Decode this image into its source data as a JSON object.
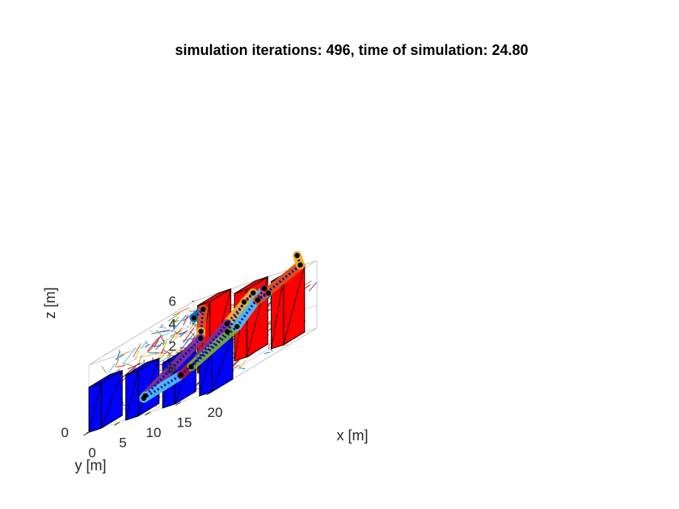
{
  "chart_data": {
    "type": "3d-scene",
    "title": "simulation iterations: 496, time of simulation: 24.80",
    "xlabel": "x [m]",
    "ylabel": "y [m]",
    "zlabel": "z [m]",
    "xlim": [
      0,
      20
    ],
    "ylim": [
      0,
      5
    ],
    "zlim": [
      0,
      6
    ],
    "x_ticks": [
      "0",
      "5",
      "10",
      "15",
      "20"
    ],
    "y_ticks": [
      "0",
      "5"
    ],
    "z_ticks": [
      "0",
      "2",
      "4",
      "6"
    ],
    "grid": true,
    "colors": {
      "front_block": "#0000ff",
      "back_block": "#ff0000",
      "robot_chain": "#0000cc",
      "joint": "#000000",
      "link_palette": [
        "#0072bd",
        "#d95319",
        "#edb120",
        "#7e2f8e",
        "#77ac30",
        "#4dbeee",
        "#a2142f"
      ]
    },
    "obstacles": [
      {
        "name": "blue-block-1",
        "color": "blue",
        "x": [
          0,
          2
        ],
        "y": [
          0,
          1
        ],
        "z": [
          0,
          4
        ]
      },
      {
        "name": "red-block-1",
        "color": "red",
        "x": [
          4,
          6
        ],
        "y": [
          4,
          5
        ],
        "z": [
          0,
          6
        ]
      },
      {
        "name": "blue-block-2",
        "color": "blue",
        "x": [
          6,
          8
        ],
        "y": [
          0,
          1
        ],
        "z": [
          0,
          4
        ]
      },
      {
        "name": "red-block-2",
        "color": "red",
        "x": [
          10,
          12
        ],
        "y": [
          4,
          5
        ],
        "z": [
          0,
          6
        ]
      },
      {
        "name": "blue-block-3",
        "color": "blue",
        "x": [
          12,
          14
        ],
        "y": [
          0,
          1
        ],
        "z": [
          0,
          4
        ]
      },
      {
        "name": "red-block-3",
        "color": "red",
        "x": [
          16,
          18
        ],
        "y": [
          4,
          5
        ],
        "z": [
          0,
          6
        ]
      },
      {
        "name": "blue-block-4",
        "color": "blue",
        "x": [
          18,
          20
        ],
        "y": [
          0,
          1
        ],
        "z": [
          0,
          4
        ]
      }
    ],
    "robot_path": [
      [
        0.0,
        5.0,
        4.5
      ],
      [
        1.5,
        5.0,
        5.0
      ],
      [
        2.5,
        4.6,
        3.3
      ],
      [
        4.5,
        4.0,
        3.0
      ],
      [
        4.0,
        1.5,
        0.8
      ],
      [
        5.5,
        1.0,
        0.9
      ],
      [
        6.5,
        2.5,
        1.1
      ],
      [
        7.5,
        4.4,
        2.6
      ],
      [
        8.5,
        4.9,
        4.5
      ],
      [
        11.0,
        4.6,
        5.2
      ],
      [
        10.5,
        3.5,
        3.8
      ],
      [
        9.8,
        2.0,
        1.8
      ],
      [
        11.8,
        3.6,
        3.2
      ],
      [
        12.5,
        4.7,
        5.2
      ],
      [
        13.8,
        4.5,
        4.8
      ],
      [
        15.5,
        3.5,
        5.0
      ],
      [
        18.0,
        4.8,
        6.2
      ],
      [
        18.5,
        4.5,
        7.3
      ]
    ],
    "rrt_branch_count": 520
  }
}
